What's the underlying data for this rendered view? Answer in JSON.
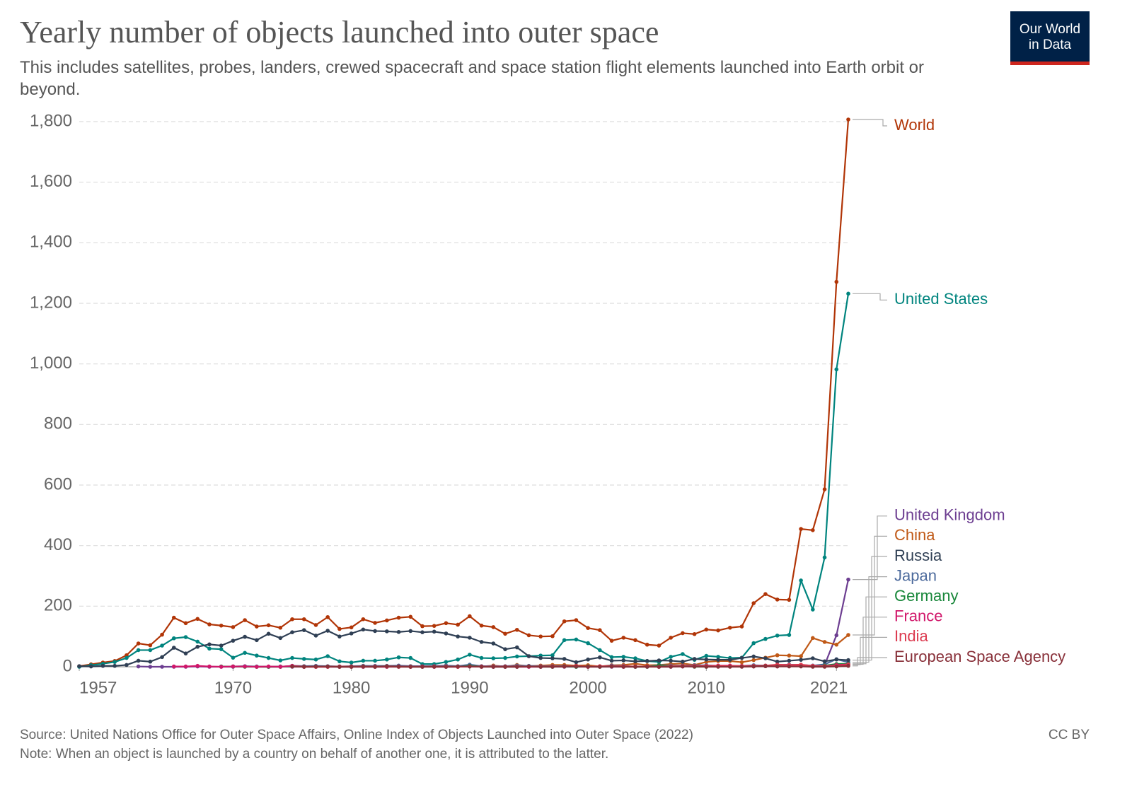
{
  "logo": [
    "Our World",
    "in Data"
  ],
  "chart_data": {
    "type": "line",
    "title": "Yearly number of objects launched into outer space",
    "subtitle": "This includes satellites, probes, landers, crewed spacecraft and space station flight elements launched into Earth orbit or beyond.",
    "source": "Source: United Nations Office for Outer Space Affairs, Online Index of Objects Launched into Outer Space (2022)",
    "note": "Note: When an object is launched by a country on behalf of another one, it is attributed to the latter.",
    "license": "CC BY",
    "grid": true,
    "xlim": [
      1957,
      2022
    ],
    "xticks": [
      1957,
      1970,
      1980,
      1990,
      2000,
      2010,
      2021
    ],
    "ylim": [
      0,
      1800
    ],
    "yticks": [
      0,
      200,
      400,
      600,
      800,
      {
        "value": 1000,
        "label": "1,000"
      },
      {
        "value": 1200,
        "label": "1,200"
      },
      {
        "value": 1400,
        "label": "1,400"
      },
      {
        "value": 1600,
        "label": "1,600"
      },
      {
        "value": 1800,
        "label": "1,800"
      }
    ],
    "x": [
      1957,
      1958,
      1959,
      1960,
      1961,
      1962,
      1963,
      1964,
      1965,
      1966,
      1967,
      1968,
      1969,
      1970,
      1971,
      1972,
      1973,
      1974,
      1975,
      1976,
      1977,
      1978,
      1979,
      1980,
      1981,
      1982,
      1983,
      1984,
      1985,
      1986,
      1987,
      1988,
      1989,
      1990,
      1991,
      1992,
      1993,
      1994,
      1995,
      1996,
      1997,
      1998,
      1999,
      2000,
      2001,
      2002,
      2003,
      2004,
      2005,
      2006,
      2007,
      2008,
      2009,
      2010,
      2011,
      2012,
      2013,
      2014,
      2015,
      2016,
      2017,
      2018,
      2019,
      2020,
      2021,
      2022
    ],
    "series": [
      {
        "name": "World",
        "color": "#b13507",
        "values": [
          2,
          8,
          14,
          19,
          38,
          77,
          71,
          106,
          162,
          144,
          158,
          140,
          136,
          131,
          154,
          133,
          137,
          129,
          157,
          157,
          138,
          164,
          125,
          130,
          157,
          145,
          153,
          162,
          165,
          134,
          135,
          144,
          139,
          167,
          136,
          131,
          109,
          122,
          104,
          100,
          101,
          150,
          154,
          128,
          121,
          86,
          96,
          88,
          73,
          70,
          96,
          111,
          108,
          123,
          120,
          129,
          133,
          210,
          240,
          222,
          221,
          455,
          451,
          586,
          1271,
          1807
        ]
      },
      {
        "name": "United States",
        "color": "#00847e",
        "values": [
          0,
          5,
          10,
          16,
          29,
          55,
          55,
          70,
          94,
          98,
          83,
          60,
          58,
          30,
          46,
          37,
          29,
          21,
          29,
          26,
          24,
          35,
          18,
          14,
          20,
          20,
          24,
          31,
          29,
          9,
          9,
          16,
          24,
          40,
          29,
          28,
          29,
          34,
          35,
          37,
          38,
          88,
          90,
          78,
          55,
          32,
          33,
          28,
          19,
          16,
          33,
          42,
          23,
          36,
          33,
          29,
          30,
          78,
          92,
          103,
          105,
          285,
          189,
          361,
          982,
          1232
        ]
      },
      {
        "name": "United Kingdom",
        "color": "#6d3e91",
        "values": [
          null,
          null,
          null,
          null,
          null,
          1,
          0,
          0,
          0,
          0,
          1,
          0,
          0,
          0,
          1,
          0,
          0,
          1,
          0,
          0,
          0,
          0,
          0,
          0,
          0,
          0,
          0,
          0,
          0,
          0,
          0,
          0,
          0,
          1,
          0,
          0,
          0,
          0,
          0,
          0,
          0,
          0,
          0,
          0,
          0,
          0,
          0,
          0,
          1,
          0,
          0,
          1,
          1,
          1,
          1,
          2,
          2,
          3,
          2,
          3,
          3,
          5,
          3,
          6,
          104,
          288
        ]
      },
      {
        "name": "China",
        "color": "#c05917",
        "values": [
          null,
          null,
          null,
          null,
          null,
          null,
          null,
          null,
          null,
          null,
          null,
          null,
          null,
          1,
          1,
          0,
          0,
          0,
          3,
          2,
          0,
          1,
          0,
          0,
          3,
          1,
          1,
          3,
          2,
          2,
          2,
          4,
          0,
          5,
          1,
          4,
          1,
          6,
          2,
          4,
          6,
          6,
          4,
          5,
          1,
          5,
          6,
          10,
          5,
          6,
          9,
          11,
          6,
          16,
          19,
          19,
          15,
          22,
          30,
          38,
          37,
          35,
          95,
          82,
          73,
          105
        ]
      },
      {
        "name": "Japan",
        "color": "#4c6a9c",
        "values": [
          null,
          null,
          null,
          null,
          null,
          null,
          null,
          null,
          null,
          null,
          null,
          null,
          null,
          1,
          2,
          1,
          0,
          0,
          3,
          2,
          3,
          2,
          1,
          2,
          3,
          3,
          3,
          4,
          2,
          2,
          3,
          4,
          2,
          7,
          2,
          2,
          2,
          4,
          3,
          2,
          2,
          2,
          0,
          1,
          1,
          4,
          3,
          0,
          0,
          6,
          4,
          4,
          5,
          5,
          3,
          3,
          3,
          5,
          4,
          6,
          7,
          6,
          4,
          8,
          25,
          15
        ]
      },
      {
        "name": "Russia",
        "color": "#2f3f54",
        "values": [
          2,
          1,
          3,
          3,
          6,
          20,
          17,
          32,
          63,
          44,
          66,
          74,
          70,
          86,
          99,
          88,
          109,
          95,
          114,
          121,
          103,
          119,
          100,
          110,
          123,
          118,
          117,
          115,
          118,
          114,
          116,
          110,
          100,
          96,
          82,
          77,
          58,
          64,
          35,
          29,
          28,
          26,
          15,
          24,
          31,
          20,
          21,
          18,
          19,
          21,
          20,
          17,
          26,
          24,
          23,
          23,
          29,
          34,
          28,
          17,
          20,
          23,
          28,
          18,
          24,
          22
        ]
      },
      {
        "name": "Germany",
        "color": "#18873a",
        "values": [
          null,
          null,
          null,
          null,
          null,
          null,
          null,
          null,
          null,
          null,
          null,
          null,
          1,
          1,
          0,
          0,
          0,
          0,
          1,
          0,
          0,
          0,
          0,
          0,
          0,
          0,
          0,
          0,
          0,
          0,
          1,
          0,
          0,
          3,
          1,
          0,
          0,
          0,
          1,
          0,
          0,
          1,
          0,
          1,
          0,
          1,
          1,
          0,
          0,
          5,
          2,
          3,
          0,
          0,
          3,
          1,
          1,
          1,
          3,
          3,
          2,
          4,
          2,
          4,
          9,
          10
        ]
      },
      {
        "name": "France",
        "color": "#d1176a",
        "values": [
          null,
          null,
          null,
          null,
          null,
          null,
          null,
          null,
          1,
          1,
          3,
          1,
          0,
          1,
          1,
          0,
          1,
          0,
          3,
          0,
          0,
          0,
          0,
          0,
          0,
          0,
          0,
          1,
          0,
          1,
          0,
          0,
          0,
          1,
          1,
          0,
          0,
          0,
          0,
          0,
          1,
          1,
          2,
          0,
          1,
          1,
          0,
          1,
          1,
          0,
          1,
          1,
          1,
          3,
          4,
          4,
          1,
          1,
          2,
          1,
          2,
          3,
          3,
          2,
          6,
          8
        ]
      },
      {
        "name": "India",
        "color": "#dc3a4f",
        "values": [
          null,
          null,
          null,
          null,
          null,
          null,
          null,
          null,
          null,
          null,
          null,
          null,
          null,
          null,
          null,
          null,
          null,
          null,
          1,
          0,
          0,
          0,
          1,
          1,
          1,
          1,
          1,
          0,
          0,
          0,
          1,
          1,
          0,
          1,
          0,
          1,
          1,
          1,
          1,
          1,
          1,
          1,
          3,
          0,
          2,
          2,
          2,
          1,
          1,
          0,
          2,
          3,
          3,
          3,
          3,
          2,
          3,
          3,
          4,
          7,
          6,
          7,
          3,
          2,
          3,
          7
        ]
      },
      {
        "name": "European Space Agency",
        "color": "#883039",
        "values": [
          null,
          null,
          null,
          null,
          null,
          null,
          null,
          null,
          null,
          null,
          null,
          null,
          null,
          null,
          null,
          null,
          null,
          null,
          1,
          0,
          1,
          1,
          0,
          0,
          1,
          0,
          2,
          1,
          0,
          0,
          0,
          0,
          1,
          1,
          0,
          0,
          0,
          0,
          1,
          0,
          0,
          1,
          1,
          0,
          0,
          1,
          0,
          0,
          0,
          0,
          0,
          1,
          1,
          0,
          0,
          0,
          0,
          1,
          2,
          1,
          1,
          1,
          0,
          0,
          1,
          3
        ]
      }
    ]
  }
}
